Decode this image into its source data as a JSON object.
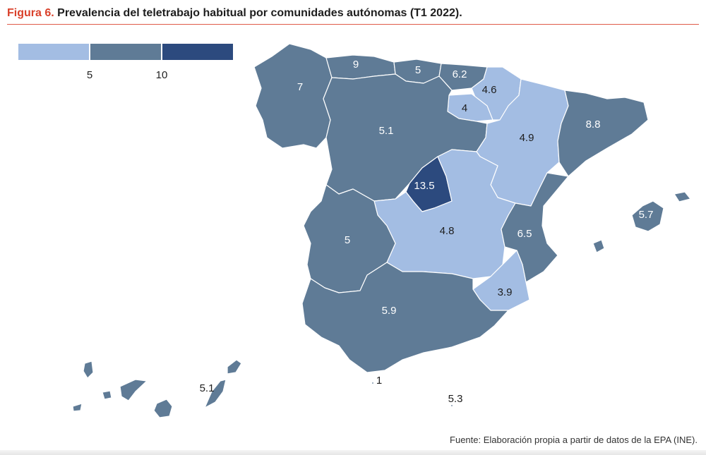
{
  "header": {
    "figure_label": "Figura 6.",
    "title": "Prevalencia del teletrabajo habitual por comunidades autónomas (T1 2022)."
  },
  "legend": {
    "colors": [
      "#a3bde3",
      "#5f7b96",
      "#2c4a7e"
    ],
    "ticks": [
      "5",
      "10"
    ]
  },
  "colors": {
    "low": "#a3bde3",
    "mid": "#5f7b96",
    "high": "#2c4a7e",
    "border": "#ffffff",
    "accent": "#d9412b"
  },
  "regions": {
    "galicia": "7",
    "asturias": "9",
    "cantabria": "5",
    "pais_vasco": "6.2",
    "navarra": "4.6",
    "la_rioja": "4",
    "castilla_leon": "5.1",
    "aragon": "4.9",
    "cataluna": "8.8",
    "madrid": "13.5",
    "castilla_la_mancha": "4.8",
    "valencia": "6.5",
    "extremadura": "5",
    "andalucia": "5.9",
    "murcia": "3.9",
    "baleares": "5.7",
    "canarias": "5.1",
    "ceuta": "1",
    "melilla": "5.3"
  },
  "footer": {
    "source": "Fuente: Elaboración propia a partir de datos de la EPA (INE)."
  }
}
